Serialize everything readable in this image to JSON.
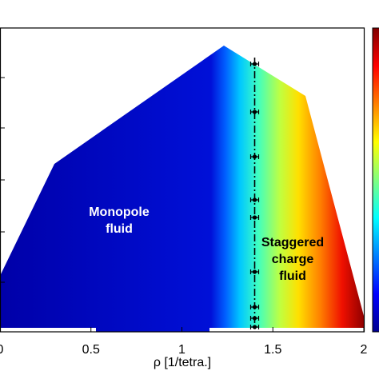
{
  "chart_data": {
    "type": "area",
    "x_label": "ρ [1/tetra.]",
    "xlim": [
      0,
      2
    ],
    "xticks": [
      0,
      0.5,
      1,
      1.5,
      2
    ],
    "reference_line_x": 1.4,
    "annotations": [
      [
        "Monopole",
        "fluid"
      ],
      [
        "Staggered",
        "charge",
        "fluid"
      ]
    ]
  }
}
